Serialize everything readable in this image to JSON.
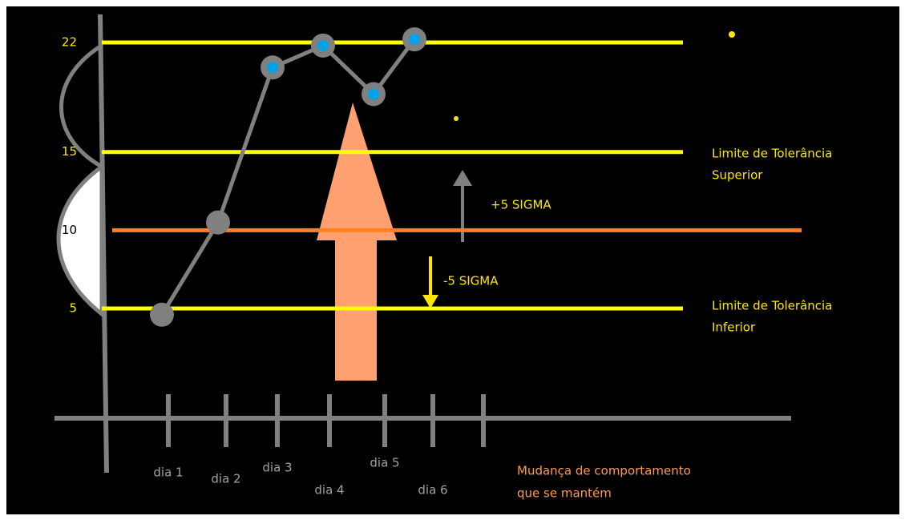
{
  "chart_data": {
    "type": "line",
    "categories": [
      "dia 1",
      "dia 2",
      "dia 3",
      "dia 4",
      "dia 5",
      "dia 6",
      null
    ],
    "values": [
      4.6,
      10.5,
      20.4,
      21.8,
      18.7,
      22.2,
      null
    ],
    "color": "#808080",
    "ylim": [
      5,
      22
    ],
    "yticks": [
      22,
      15,
      10,
      5
    ],
    "hlines": [
      {
        "value": 22,
        "color": "#ffff00"
      },
      {
        "value": 15,
        "color": "#ffff00"
      },
      {
        "value": 10,
        "color": "#ff7f27"
      },
      {
        "value": 5,
        "color": "#ffff00"
      }
    ],
    "annotations": {
      "upper_limit": [
        "Limite de Tolerância",
        "Superior"
      ],
      "plus_sigma": "+5 SIGMA",
      "minus_sigma": "-5 SIGMA",
      "lower_limit": [
        "Limite de Tolerância",
        "Inferior"
      ],
      "change": [
        "Mudança de comportamento",
        "que se mantém"
      ]
    }
  }
}
